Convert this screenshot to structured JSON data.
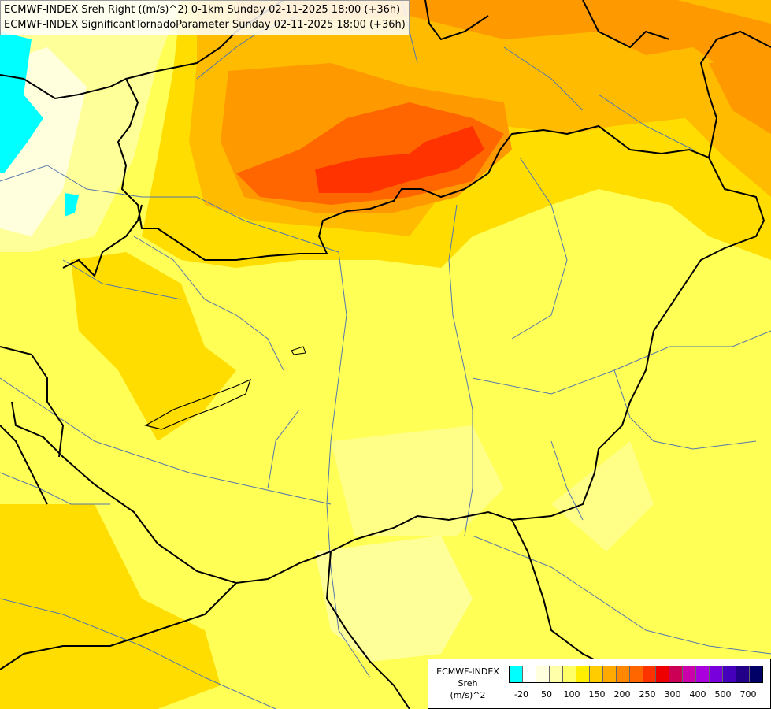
{
  "title": {
    "line1": "ECMWF-INDEX Sreh Right ((m/s)^2) 0-1km Sunday 02-11-2025 18:00 (+36h)",
    "line2": "ECMWF-INDEX SignificantTornadoParameter Sunday 02-11-2025 18:00 (+36h)"
  },
  "legend": {
    "model": "ECMWF-INDEX",
    "param": "Sreh",
    "unit": "(m/s)^2",
    "ticks": [
      "-20",
      "50",
      "100",
      "150",
      "200",
      "250",
      "300",
      "400",
      "500",
      "700"
    ],
    "colors": [
      "#00ffff",
      "#ffffff",
      "#ffffdd",
      "#ffffaa",
      "#ffff66",
      "#ffee00",
      "#ffcc00",
      "#ffaa00",
      "#ff8800",
      "#ff6600",
      "#ff3300",
      "#ee0000",
      "#cc0055",
      "#cc00aa",
      "#aa00dd",
      "#7700dd",
      "#4400bb",
      "#220088",
      "#000066"
    ]
  },
  "colors": {
    "cyan": "#00ffff",
    "white": "#ffffff",
    "pale": "#ffff99",
    "yellow": "#ffff33",
    "gold": "#ffdd00",
    "orange_light": "#ffbb00",
    "orange": "#ff9900",
    "orange_dark": "#ff6600",
    "red": "#ff3300",
    "border": "#000000",
    "river": "#5577aa"
  }
}
